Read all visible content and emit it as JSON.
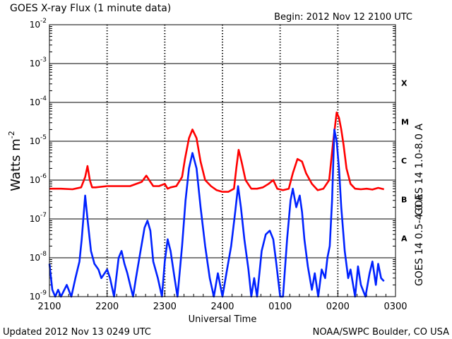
{
  "header": {
    "title": "GOES X-ray Flux (1 minute data)",
    "begin": "Begin: 2012 Nov 12 2100 UTC"
  },
  "footer": {
    "updated": "Updated 2012 Nov 13 0249 UTC",
    "credit": "NOAA/SWPC Boulder, CO USA"
  },
  "colors": {
    "long_channel": "#ff0000",
    "short_channel": "#0022ff",
    "grid": "#000000"
  },
  "chart_data": {
    "type": "line",
    "title": "GOES X-ray Flux (1 minute data)",
    "xlabel": "Universal Time",
    "ylabel": "Watts m",
    "ylabel_sup": "-2",
    "y_scale": "log",
    "ylim_exponent": [
      -9,
      -2
    ],
    "x_unit": "hours since 2012 Nov 12 2100 UTC",
    "xlim": [
      0,
      6
    ],
    "x_ticks": [
      {
        "x": 0,
        "label": "2100"
      },
      {
        "x": 1,
        "label": "2200"
      },
      {
        "x": 2,
        "label": "2300"
      },
      {
        "x": 3,
        "label": "2400"
      },
      {
        "x": 4,
        "label": "0100"
      },
      {
        "x": 5,
        "label": "0200"
      },
      {
        "x": 6,
        "label": "0300"
      }
    ],
    "y_ticks": [
      {
        "exp": -9,
        "base": "10",
        "sup": "-9"
      },
      {
        "exp": -8,
        "base": "10",
        "sup": "-8"
      },
      {
        "exp": -7,
        "base": "10",
        "sup": "-7"
      },
      {
        "exp": -6,
        "base": "10",
        "sup": "-6"
      },
      {
        "exp": -5,
        "base": "10",
        "sup": "-5"
      },
      {
        "exp": -4,
        "base": "10",
        "sup": "-4"
      },
      {
        "exp": -3,
        "base": "10",
        "sup": "-3"
      },
      {
        "exp": -2,
        "base": "10",
        "sup": "-2"
      }
    ],
    "flare_classes": [
      {
        "label": "A",
        "exp": -7.5
      },
      {
        "label": "B",
        "exp": -6.5
      },
      {
        "label": "C",
        "exp": -5.5
      },
      {
        "label": "M",
        "exp": -4.5
      },
      {
        "label": "X",
        "exp": -3.5
      }
    ],
    "series": [
      {
        "name": "GOES 14 1.0-8.0 A",
        "color": "#ff0000",
        "x": [
          0.0,
          0.2,
          0.4,
          0.55,
          0.62,
          0.66,
          0.7,
          0.74,
          0.8,
          1.0,
          1.2,
          1.4,
          1.6,
          1.68,
          1.75,
          1.8,
          1.9,
          2.0,
          2.05,
          2.1,
          2.2,
          2.3,
          2.35,
          2.42,
          2.48,
          2.55,
          2.62,
          2.7,
          2.8,
          2.9,
          3.0,
          3.1,
          3.2,
          3.24,
          3.28,
          3.33,
          3.4,
          3.5,
          3.6,
          3.7,
          3.8,
          3.88,
          3.95,
          4.05,
          4.15,
          4.22,
          4.3,
          4.38,
          4.45,
          4.55,
          4.65,
          4.75,
          4.85,
          4.92,
          4.98,
          5.02,
          5.06,
          5.1,
          5.15,
          5.22,
          5.3,
          5.4,
          5.5,
          5.6,
          5.7,
          5.8
        ],
        "y": [
          6e-07,
          6e-07,
          5.8e-07,
          6.5e-07,
          1.2e-06,
          2.3e-06,
          1e-06,
          6.5e-07,
          6.5e-07,
          7e-07,
          7e-07,
          7e-07,
          9e-07,
          1.3e-06,
          9e-07,
          7e-07,
          7e-07,
          8e-07,
          6e-07,
          6.5e-07,
          7e-07,
          1.2e-06,
          3.5e-06,
          1.2e-05,
          2e-05,
          1.2e-05,
          3e-06,
          1e-06,
          7e-07,
          5.5e-07,
          5e-07,
          5e-07,
          6e-07,
          2e-06,
          6e-06,
          3e-06,
          1e-06,
          6e-07,
          6e-07,
          6.5e-07,
          8e-07,
          1e-06,
          6e-07,
          5.5e-07,
          6e-07,
          1.5e-06,
          3.5e-06,
          3e-06,
          1.5e-06,
          8e-07,
          5.5e-07,
          6e-07,
          1e-06,
          1e-05,
          5.5e-05,
          4e-05,
          2e-05,
          8e-06,
          2e-06,
          8e-07,
          6e-07,
          5.8e-07,
          6e-07,
          5.7e-07,
          6.3e-07,
          5.8e-07
        ]
      },
      {
        "name": "GOES 14 0.5-4.0 A",
        "color": "#0022ff",
        "x": [
          0.0,
          0.05,
          0.1,
          0.15,
          0.2,
          0.3,
          0.38,
          0.45,
          0.52,
          0.56,
          0.62,
          0.66,
          0.72,
          0.78,
          0.85,
          0.9,
          1.0,
          1.05,
          1.12,
          1.2,
          1.25,
          1.3,
          1.35,
          1.4,
          1.45,
          1.5,
          1.58,
          1.65,
          1.7,
          1.75,
          1.8,
          1.88,
          1.95,
          2.0,
          2.05,
          2.1,
          2.17,
          2.22,
          2.3,
          2.36,
          2.42,
          2.48,
          2.55,
          2.62,
          2.7,
          2.78,
          2.85,
          2.92,
          3.0,
          3.08,
          3.15,
          3.22,
          3.27,
          3.32,
          3.38,
          3.45,
          3.5,
          3.55,
          3.6,
          3.68,
          3.75,
          3.82,
          3.88,
          3.93,
          4.0,
          4.05,
          4.12,
          4.18,
          4.22,
          4.28,
          4.34,
          4.38,
          4.42,
          4.48,
          4.55,
          4.6,
          4.66,
          4.72,
          4.78,
          4.82,
          4.86,
          4.9,
          4.94,
          4.98,
          5.02,
          5.06,
          5.12,
          5.18,
          5.22,
          5.3,
          5.35,
          5.4,
          5.48,
          5.55,
          5.6,
          5.66,
          5.7,
          5.75,
          5.8
        ],
        "y": [
          7e-09,
          1.5e-09,
          1e-09,
          1.5e-09,
          1e-09,
          2e-09,
          1e-09,
          3e-09,
          8e-09,
          3e-08,
          4e-07,
          1e-07,
          1.5e-08,
          7e-09,
          5e-09,
          3e-09,
          5e-09,
          3e-09,
          1e-09,
          1e-08,
          1.5e-08,
          7e-09,
          4e-09,
          2e-09,
          1e-09,
          3e-09,
          1.5e-08,
          6e-08,
          9e-08,
          5e-08,
          8e-09,
          3e-09,
          1e-09,
          8e-09,
          3e-08,
          1.5e-08,
          3e-09,
          1e-09,
          2e-08,
          3e-07,
          2e-06,
          5e-06,
          2e-06,
          2e-07,
          2e-08,
          3e-09,
          1e-09,
          4e-09,
          1e-09,
          5e-09,
          2e-08,
          1.5e-07,
          7e-07,
          2e-07,
          3e-08,
          5e-09,
          1e-09,
          3e-09,
          1e-09,
          1.5e-08,
          4e-08,
          5e-08,
          3e-08,
          8e-09,
          1e-09,
          1e-09,
          3e-08,
          3e-07,
          6e-07,
          2e-07,
          4e-07,
          1.5e-07,
          3e-08,
          6e-09,
          1.5e-09,
          4e-09,
          1e-09,
          5e-09,
          3e-09,
          1e-08,
          2e-08,
          3e-07,
          2e-05,
          1e-05,
          2e-06,
          2e-07,
          1.5e-08,
          3e-09,
          5e-09,
          1e-09,
          6e-09,
          2e-09,
          1e-09,
          4e-09,
          8e-09,
          2e-09,
          7e-09,
          3e-09,
          2.5e-09
        ]
      }
    ]
  }
}
